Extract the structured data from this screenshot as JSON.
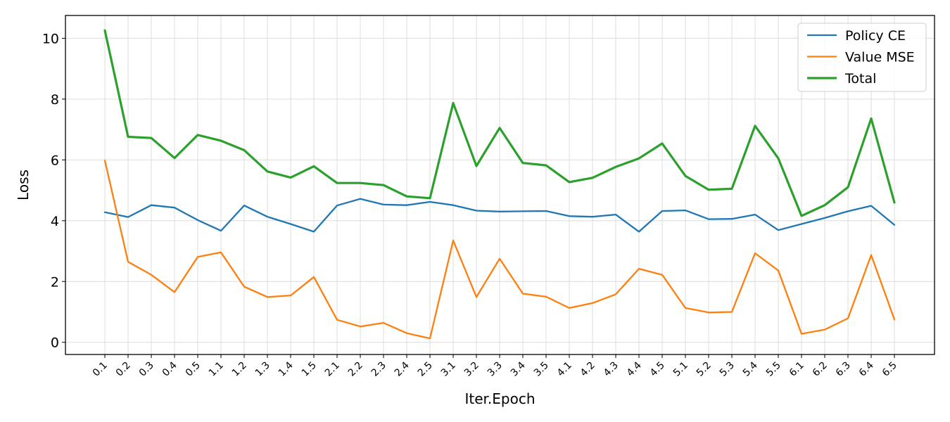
{
  "chart_data": {
    "type": "line",
    "title": "",
    "xlabel": "Iter.Epoch",
    "ylabel": "Loss",
    "ylim": [
      -0.4,
      10.75
    ],
    "yticks": [
      0,
      2,
      4,
      6,
      8,
      10
    ],
    "grid": true,
    "legend_position": "top-right",
    "categories": [
      "0.1",
      "0.2",
      "0.3",
      "0.4",
      "0.5",
      "1.1",
      "1.2",
      "1.3",
      "1.4",
      "1.5",
      "2.1",
      "2.2",
      "2.3",
      "2.4",
      "2.5",
      "3.1",
      "3.2",
      "3.3",
      "3.4",
      "3.5",
      "4.1",
      "4.2",
      "4.3",
      "4.4",
      "4.5",
      "5.1",
      "5.2",
      "5.3",
      "5.4",
      "5.5",
      "6.1",
      "6.2",
      "6.3",
      "6.4",
      "6.5"
    ],
    "series": [
      {
        "name": "Policy CE",
        "color": "#1f77b4",
        "values": [
          4.28,
          4.12,
          4.51,
          4.43,
          4.02,
          3.67,
          4.5,
          4.13,
          3.89,
          3.64,
          4.5,
          4.72,
          4.53,
          4.51,
          4.62,
          4.51,
          4.33,
          4.3,
          4.31,
          4.32,
          4.15,
          4.13,
          4.2,
          3.64,
          4.32,
          4.34,
          4.05,
          4.06,
          4.2,
          3.69,
          3.89,
          4.09,
          4.31,
          4.49,
          3.86
        ]
      },
      {
        "name": "Value MSE",
        "color": "#ff7f0e",
        "values": [
          5.98,
          2.65,
          2.22,
          1.65,
          2.81,
          2.96,
          1.83,
          1.49,
          1.54,
          2.15,
          0.74,
          0.52,
          0.64,
          0.3,
          0.13,
          3.35,
          1.49,
          2.75,
          1.6,
          1.5,
          1.13,
          1.29,
          1.58,
          2.42,
          2.22,
          1.13,
          0.98,
          1.0,
          2.93,
          2.36,
          0.28,
          0.42,
          0.79,
          2.87,
          0.75
        ]
      },
      {
        "name": "Total",
        "color": "#2ca02c",
        "values": [
          10.26,
          6.76,
          6.72,
          6.06,
          6.82,
          6.63,
          6.32,
          5.62,
          5.42,
          5.79,
          5.24,
          5.24,
          5.17,
          4.8,
          4.74,
          7.87,
          5.8,
          7.05,
          5.9,
          5.82,
          5.27,
          5.41,
          5.77,
          6.05,
          6.54,
          5.47,
          5.02,
          5.05,
          7.12,
          6.05,
          4.16,
          4.51,
          5.1,
          7.36,
          4.6
        ]
      }
    ]
  }
}
